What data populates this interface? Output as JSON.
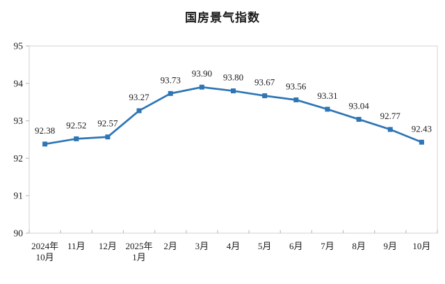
{
  "chart_data": {
    "type": "line",
    "title": "国房景气指数",
    "categories": [
      "2024年\n10月",
      "11月",
      "12月",
      "2025年\n1月",
      "2月",
      "3月",
      "4月",
      "5月",
      "6月",
      "7月",
      "8月",
      "9月",
      "10月"
    ],
    "values": [
      92.38,
      92.52,
      92.57,
      93.27,
      93.73,
      93.9,
      93.8,
      93.67,
      93.56,
      93.31,
      93.04,
      92.77,
      92.43
    ],
    "data_labels": [
      "92.38",
      "92.52",
      "92.57",
      "93.27",
      "93.73",
      "93.90",
      "93.80",
      "93.67",
      "93.56",
      "93.31",
      "93.04",
      "92.77",
      "92.43"
    ],
    "xlabel": "",
    "ylabel": "",
    "ylim": [
      90,
      95
    ],
    "yticks": [
      90,
      91,
      92,
      93,
      94,
      95
    ],
    "grid": false,
    "legend_position": "none",
    "marker": "square",
    "colors": {
      "line": "#2E75B6",
      "marker": "#2E75B6",
      "plot_border": "#D9D9D9",
      "axis": "#BFBFBF",
      "text": "#1A1A1A",
      "background": "#FFFFFF"
    }
  }
}
